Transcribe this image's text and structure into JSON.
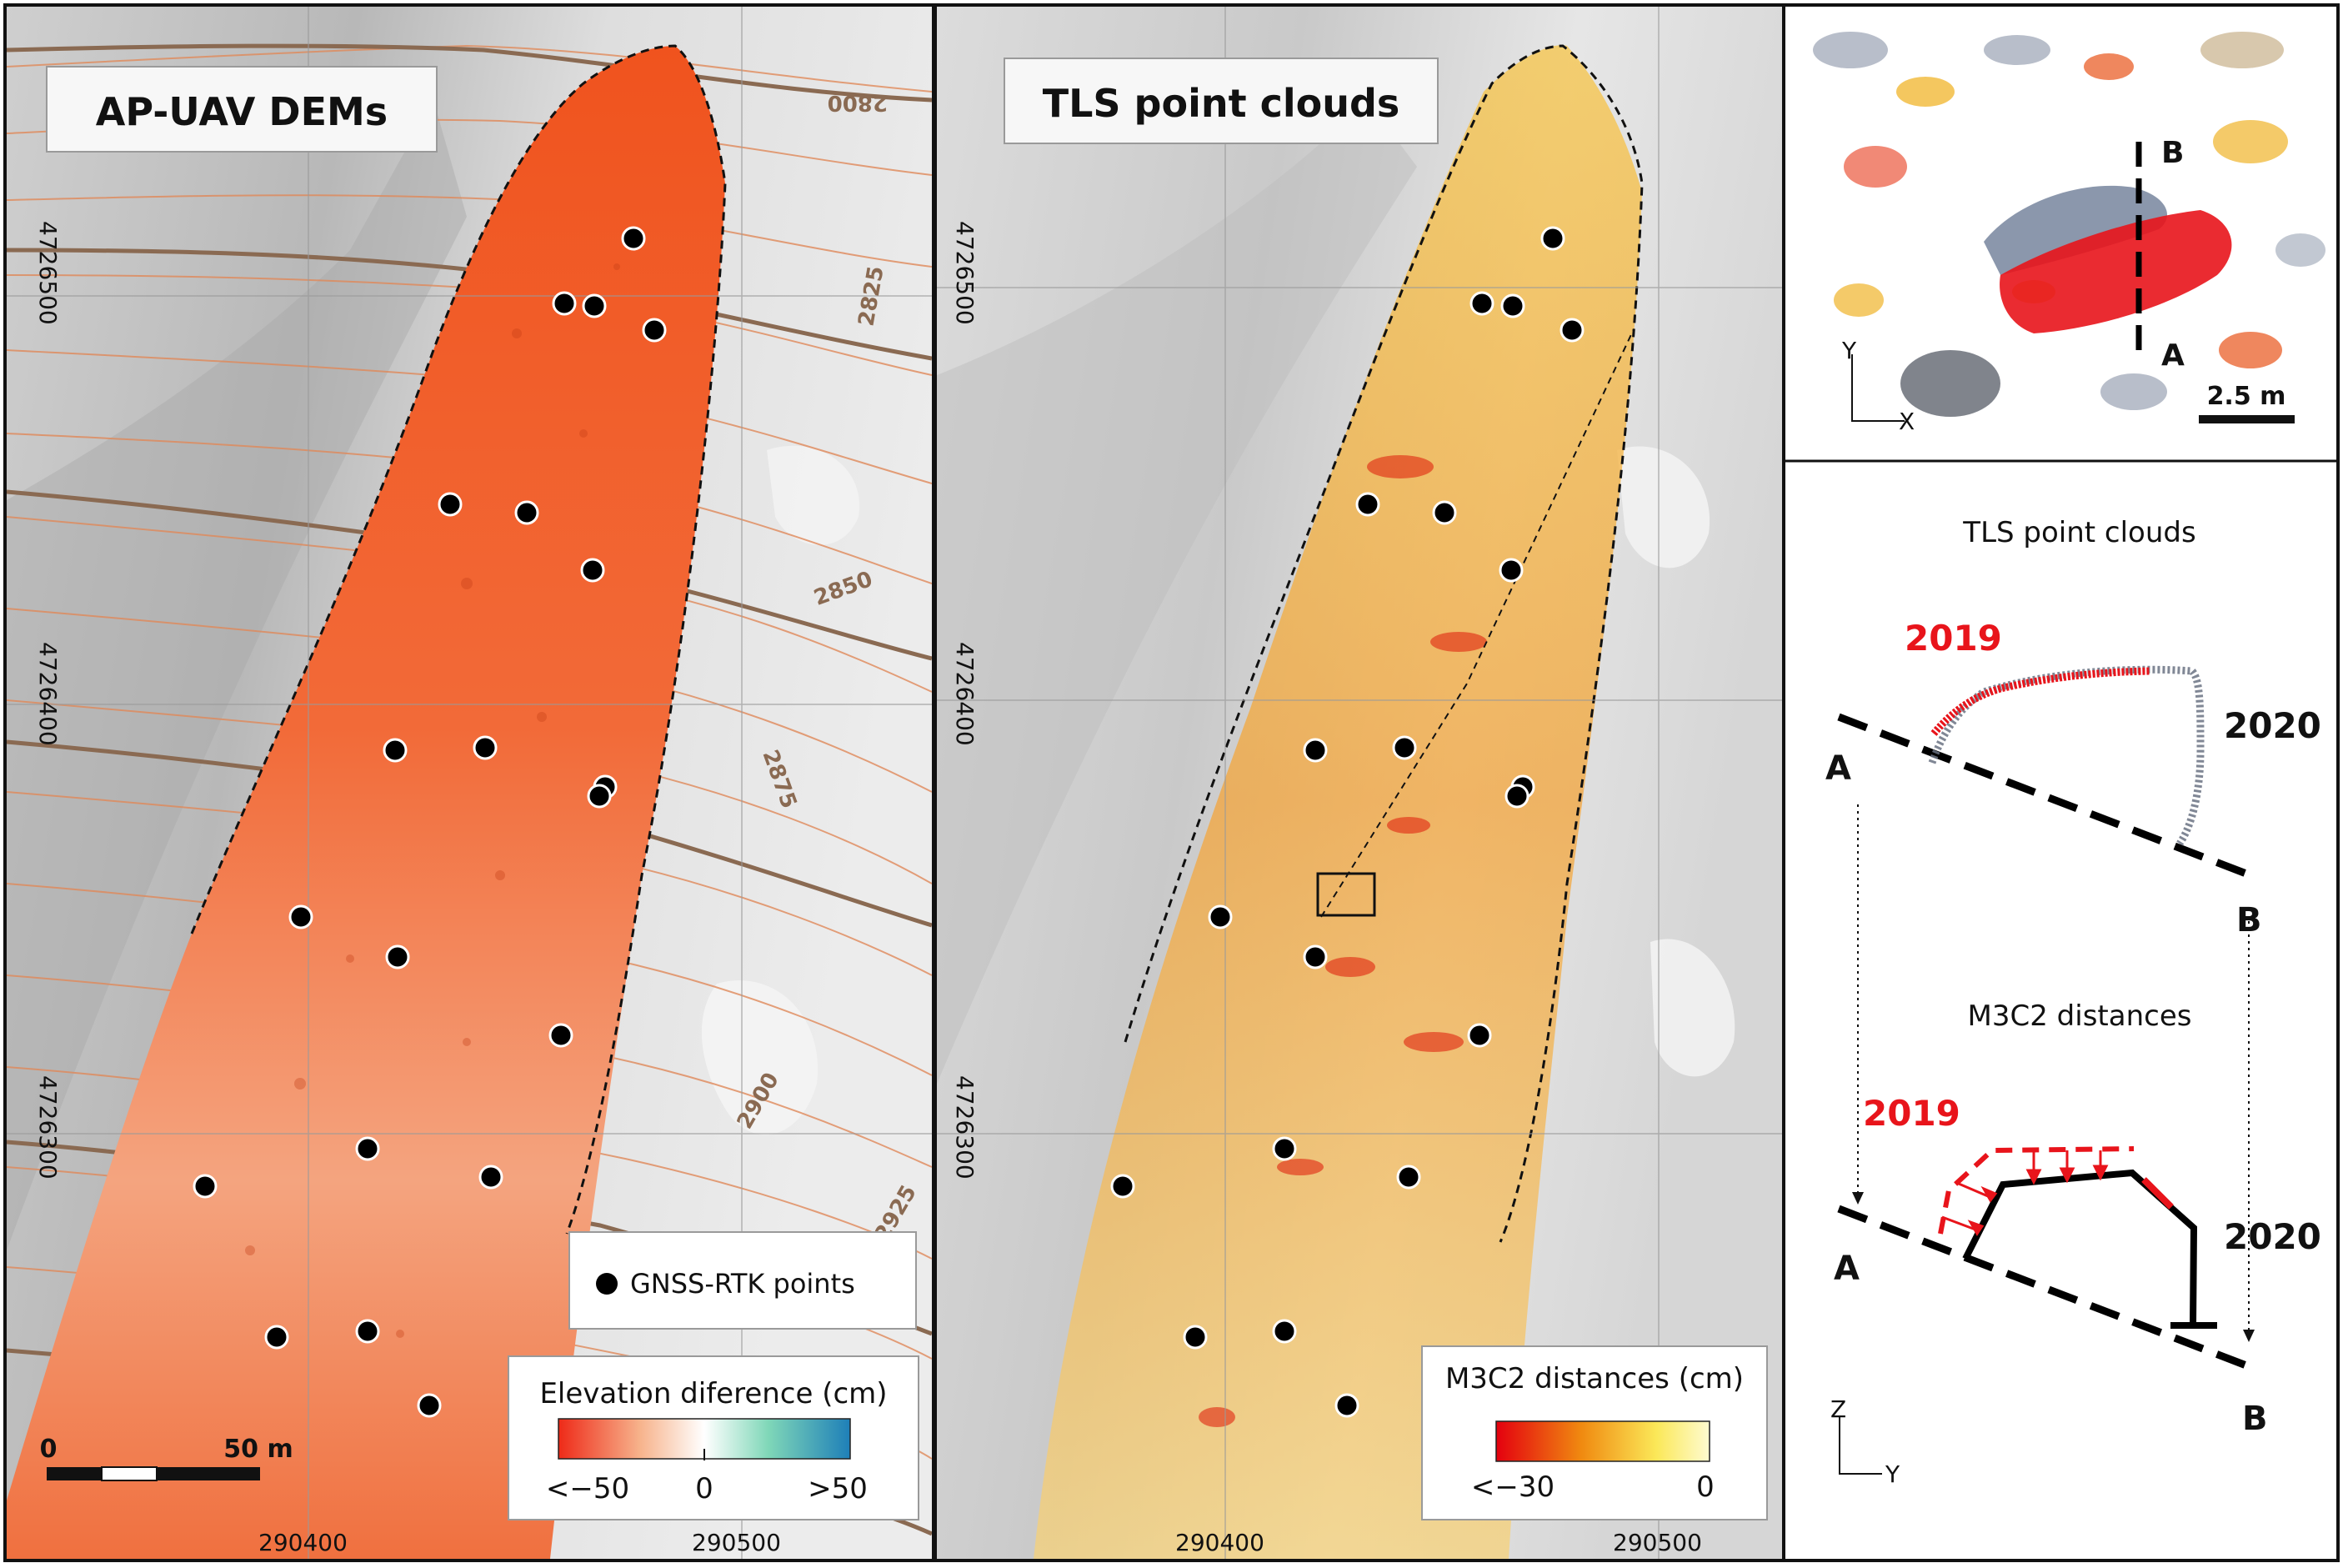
{
  "panel_left": {
    "title": "AP-UAV DEMs",
    "northing_labels": [
      "4726500",
      "4726400",
      "4726300"
    ],
    "easting_labels": [
      "290400",
      "290500"
    ],
    "contour_labels": [
      "2800",
      "2825",
      "2850",
      "2875",
      "2900",
      "2925"
    ],
    "gnss_legend": "GNSS-RTK points",
    "colorbar": {
      "title": "Elevation diference (cm)",
      "min_label": "<−50",
      "mid_label": "0",
      "max_label": ">50",
      "colors": [
        "#ee2a18",
        "#f7b38c",
        "#ffffff",
        "#7fd7b8",
        "#1e7fb8"
      ]
    },
    "scalebar": {
      "start": "0",
      "end": "50 m"
    }
  },
  "panel_mid": {
    "title": "TLS point clouds",
    "northing_labels": [
      "4726500",
      "4726400",
      "4726300"
    ],
    "easting_labels": [
      "290400",
      "290500"
    ],
    "colorbar": {
      "title": "M3C2 distances (cm)",
      "min_label": "<−30",
      "max_label": "0",
      "colors": [
        "#e4000f",
        "#f08a10",
        "#fbe858",
        "#fefbd0"
      ]
    }
  },
  "panel_inset": {
    "label_a": "A",
    "label_b": "B",
    "axis_y": "Y",
    "axis_x": "X",
    "scale_label": "2.5 m"
  },
  "panel_profile": {
    "title_tls": "TLS point clouds",
    "title_m3c2": "M3C2 distances",
    "year_old": "2019",
    "year_new": "2020",
    "label_a": "A",
    "label_b": "B",
    "axis_z": "Z",
    "axis_y": "Y",
    "color_2019": "#e8141b"
  }
}
